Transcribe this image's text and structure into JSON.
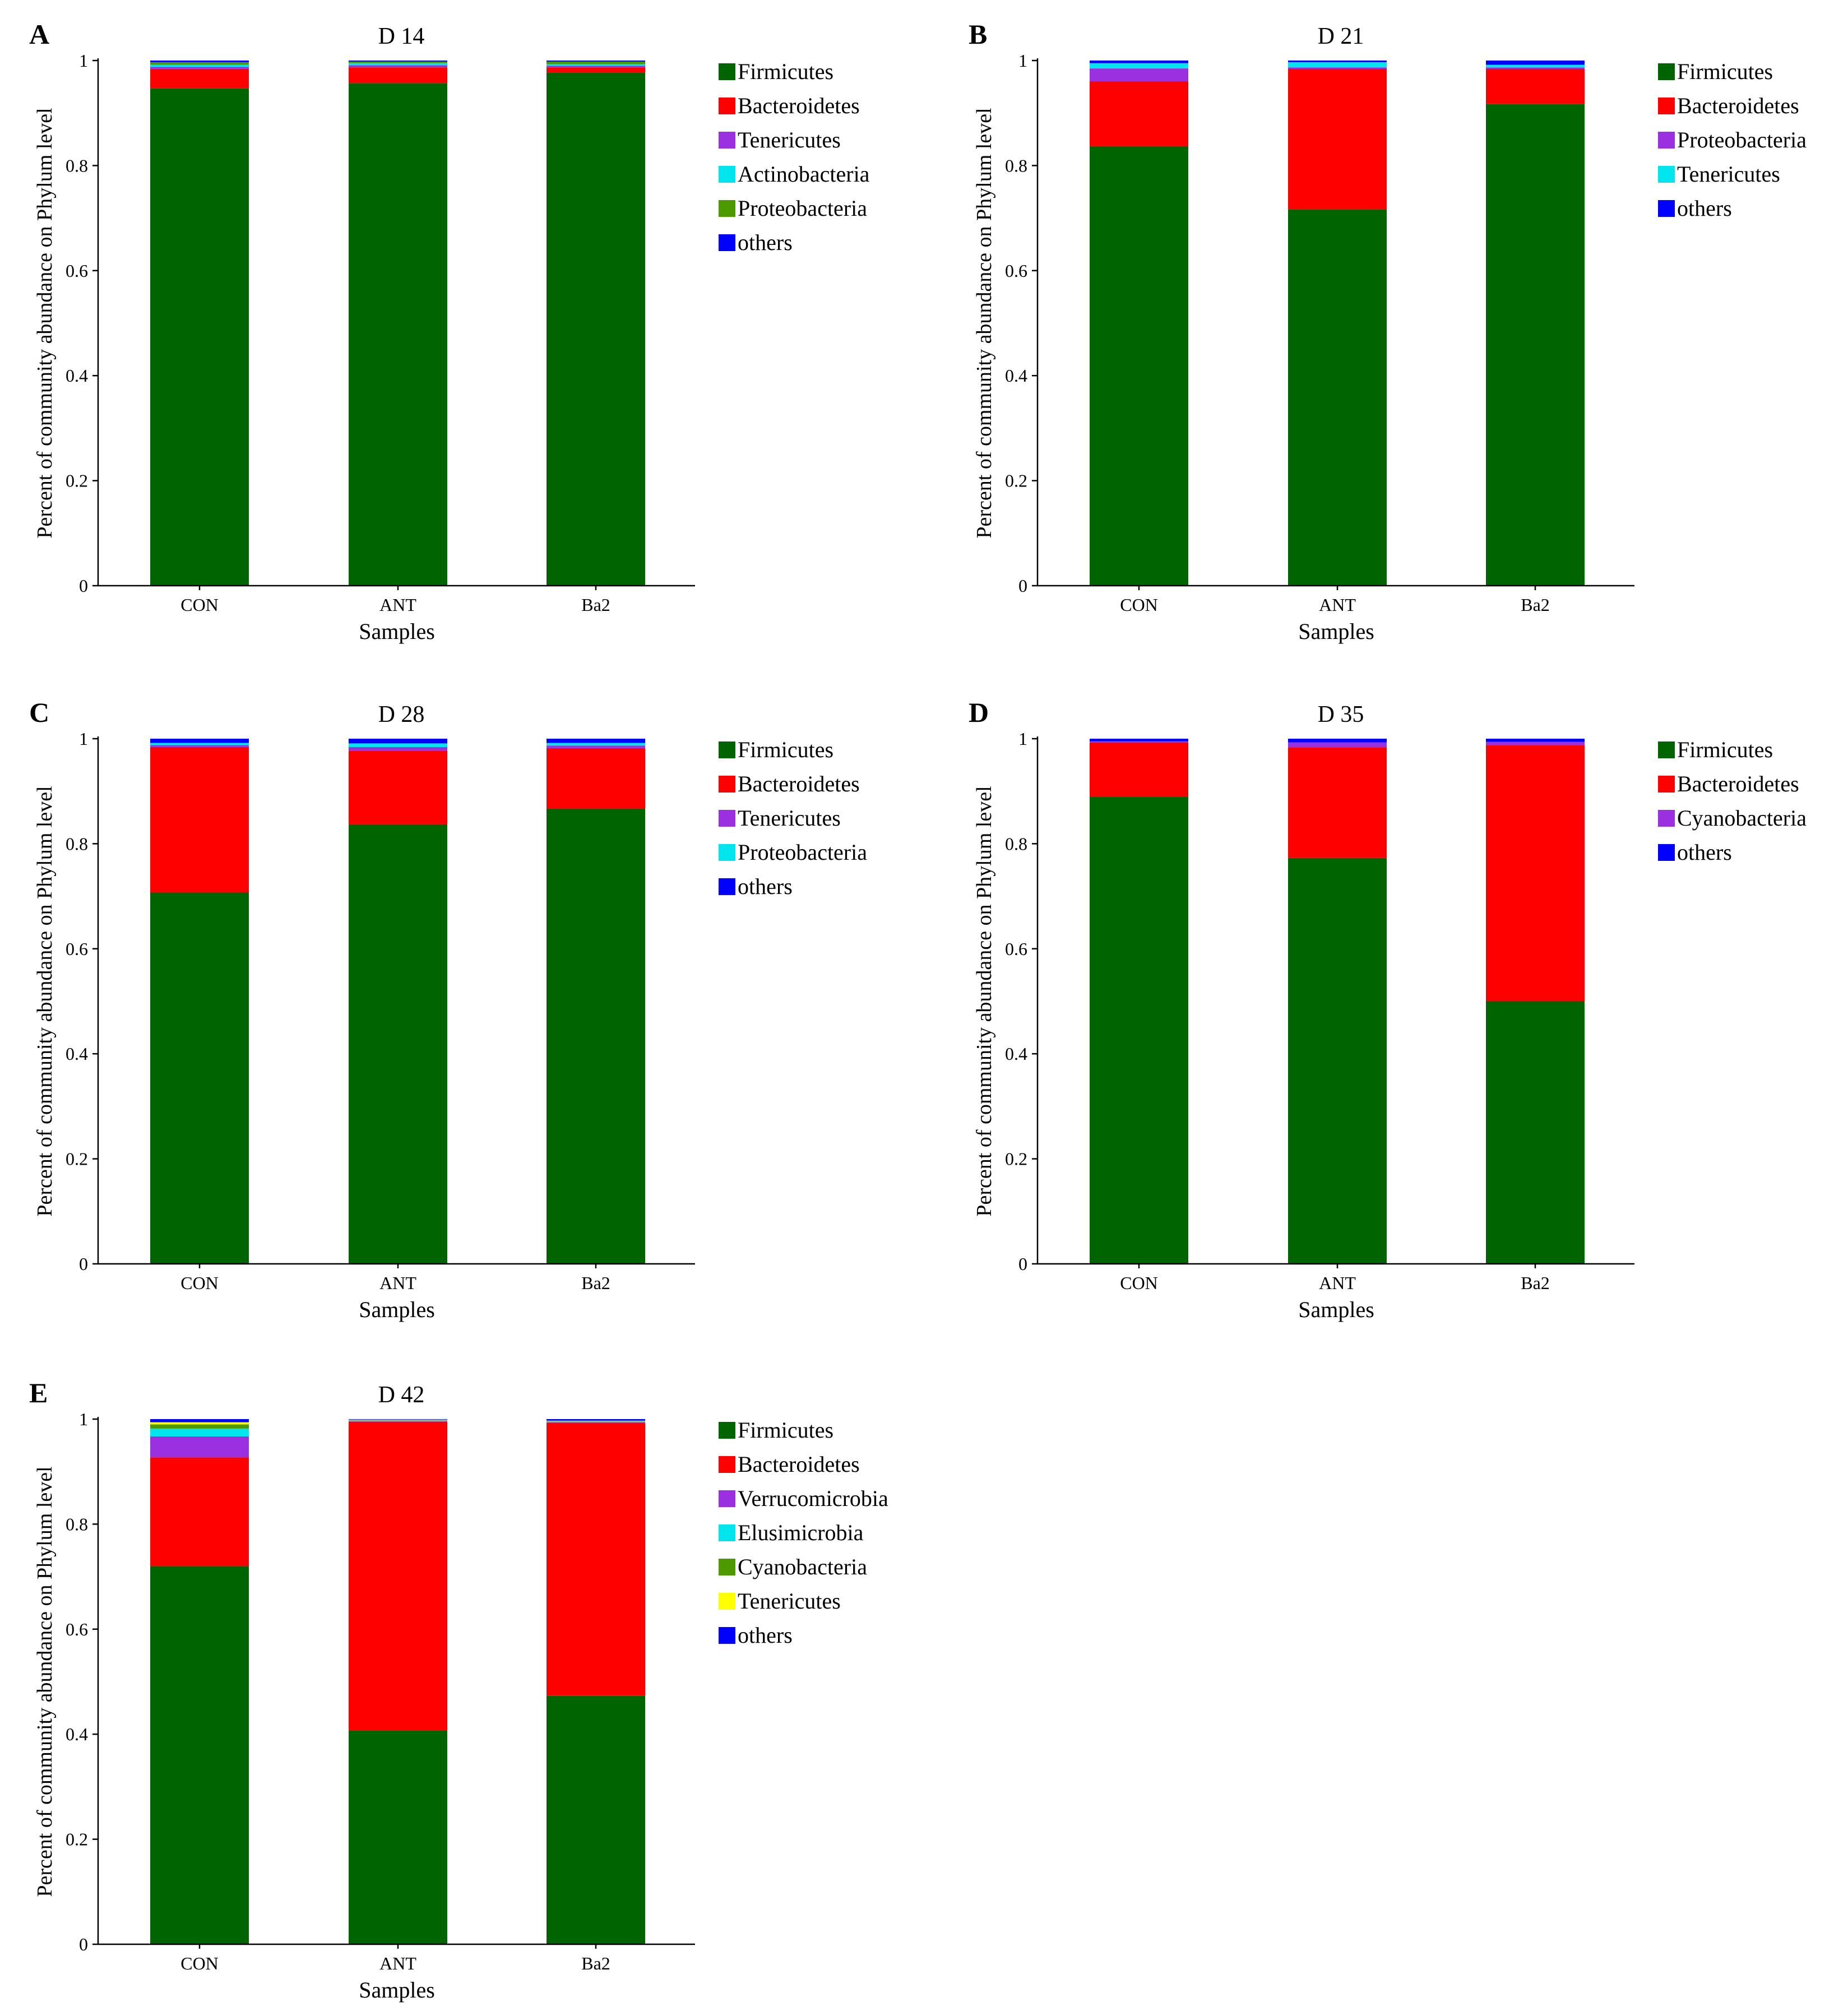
{
  "chart_data": [
    {
      "panel": "A",
      "title": "D 14",
      "type": "bar",
      "stacked": true,
      "xlabel": "Samples",
      "ylabel": "Percent of community abundance on Phylum level",
      "ylim": [
        0,
        1
      ],
      "yticks": [
        "0",
        "0.2",
        "0.4",
        "0.6",
        "0.8",
        "1"
      ],
      "categories": [
        "CON",
        "ANT",
        "Ba2"
      ],
      "series": [
        {
          "name": "Firmicutes",
          "color": "#006400",
          "values": [
            0.947,
            0.957,
            0.977
          ]
        },
        {
          "name": "Bacteroidetes",
          "color": "#ff0000",
          "values": [
            0.037,
            0.03,
            0.01
          ]
        },
        {
          "name": "Tenericutes",
          "color": "#9b30e0",
          "values": [
            0.004,
            0.004,
            0.003
          ]
        },
        {
          "name": "Actinobacteria",
          "color": "#00e5ee",
          "values": [
            0.004,
            0.004,
            0.003
          ]
        },
        {
          "name": "Proteobacteria",
          "color": "#4c9a00",
          "values": [
            0.005,
            0.003,
            0.005
          ]
        },
        {
          "name": "others",
          "color": "#0000ff",
          "values": [
            0.003,
            0.002,
            0.002
          ]
        }
      ]
    },
    {
      "panel": "B",
      "title": "D 21",
      "type": "bar",
      "stacked": true,
      "xlabel": "Samples",
      "ylabel": "Percent of community abundance on Phylum level",
      "ylim": [
        0,
        1
      ],
      "yticks": [
        "0",
        "0.2",
        "0.4",
        "0.6",
        "0.8",
        "1"
      ],
      "categories": [
        "CON",
        "ANT",
        "Ba2"
      ],
      "series": [
        {
          "name": "Firmicutes",
          "color": "#006400",
          "values": [
            0.837,
            0.717,
            0.917
          ]
        },
        {
          "name": "Bacteroidetes",
          "color": "#ff0000",
          "values": [
            0.123,
            0.267,
            0.067
          ]
        },
        {
          "name": "Proteobacteria",
          "color": "#9b30e0",
          "values": [
            0.025,
            0.003,
            0.003
          ]
        },
        {
          "name": "Tenericutes",
          "color": "#00e5ee",
          "values": [
            0.01,
            0.01,
            0.005
          ]
        },
        {
          "name": "others",
          "color": "#0000ff",
          "values": [
            0.005,
            0.003,
            0.008
          ]
        }
      ]
    },
    {
      "panel": "C",
      "title": "D 28",
      "type": "bar",
      "stacked": true,
      "xlabel": "Samples",
      "ylabel": "Percent of community abundance on Phylum level",
      "ylim": [
        0,
        1
      ],
      "yticks": [
        "0",
        "0.2",
        "0.4",
        "0.6",
        "0.8",
        "1"
      ],
      "categories": [
        "CON",
        "ANT",
        "Ba2"
      ],
      "series": [
        {
          "name": "Firmicutes",
          "color": "#006400",
          "values": [
            0.707,
            0.837,
            0.867
          ]
        },
        {
          "name": "Bacteroidetes",
          "color": "#ff0000",
          "values": [
            0.277,
            0.14,
            0.115
          ]
        },
        {
          "name": "Tenericutes",
          "color": "#9b30e0",
          "values": [
            0.004,
            0.007,
            0.005
          ]
        },
        {
          "name": "Proteobacteria",
          "color": "#00e5ee",
          "values": [
            0.004,
            0.007,
            0.005
          ]
        },
        {
          "name": "others",
          "color": "#0000ff",
          "values": [
            0.008,
            0.009,
            0.008
          ]
        }
      ]
    },
    {
      "panel": "D",
      "title": "D 35",
      "type": "bar",
      "stacked": true,
      "xlabel": "Samples",
      "ylabel": "Percent of community abundance on Phylum level",
      "ylim": [
        0,
        1
      ],
      "yticks": [
        "0",
        "0.2",
        "0.4",
        "0.6",
        "0.8",
        "1"
      ],
      "categories": [
        "CON",
        "ANT",
        "Ba2"
      ],
      "series": [
        {
          "name": "Firmicutes",
          "color": "#006400",
          "values": [
            0.89,
            0.773,
            0.5
          ]
        },
        {
          "name": "Bacteroidetes",
          "color": "#ff0000",
          "values": [
            0.103,
            0.21,
            0.488
          ]
        },
        {
          "name": "Cyanobacteria",
          "color": "#9b30e0",
          "values": [
            0.002,
            0.01,
            0.006
          ]
        },
        {
          "name": "others",
          "color": "#0000ff",
          "values": [
            0.005,
            0.007,
            0.006
          ]
        }
      ]
    },
    {
      "panel": "E",
      "title": "D 42",
      "type": "bar",
      "stacked": true,
      "xlabel": "Samples",
      "ylabel": "Percent of community abundance on Phylum level",
      "ylim": [
        0,
        1
      ],
      "yticks": [
        "0",
        "0.2",
        "0.4",
        "0.6",
        "0.8",
        "1"
      ],
      "categories": [
        "CON",
        "ANT",
        "Ba2"
      ],
      "series": [
        {
          "name": "Firmicutes",
          "color": "#006400",
          "values": [
            0.72,
            0.407,
            0.473
          ]
        },
        {
          "name": "Bacteroidetes",
          "color": "#ff0000",
          "values": [
            0.207,
            0.588,
            0.52
          ]
        },
        {
          "name": "Verrucomicrobia",
          "color": "#9b30e0",
          "values": [
            0.04,
            0.001,
            0.001
          ]
        },
        {
          "name": "Elusimicrobia",
          "color": "#00e5ee",
          "values": [
            0.015,
            0.001,
            0.001
          ]
        },
        {
          "name": "Cyanobacteria",
          "color": "#4c9a00",
          "values": [
            0.008,
            0.001,
            0.001
          ]
        },
        {
          "name": "Tenericutes",
          "color": "#ffff00",
          "values": [
            0.004,
            0.001,
            0.001
          ]
        },
        {
          "name": "others",
          "color": "#0000ff",
          "values": [
            0.006,
            0.001,
            0.003
          ]
        }
      ]
    }
  ]
}
